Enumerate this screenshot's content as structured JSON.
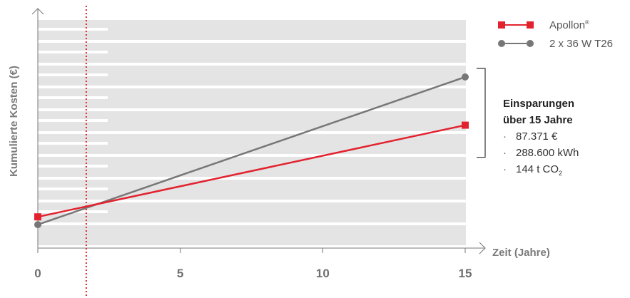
{
  "chart_data": {
    "type": "line",
    "xlabel": "Zeit (Jahre)",
    "ylabel": "Kumulierte Kosten (€)",
    "xlim": [
      0,
      15
    ],
    "x_ticks": [
      "0",
      "5",
      "10",
      "15"
    ],
    "series": [
      {
        "name": "Apollon",
        "name_superscript": "®",
        "color": "#e2232f",
        "marker": "square",
        "x": [
          0,
          15
        ],
        "y": [
          0.1,
          0.69
        ]
      },
      {
        "name": "2 x 36 W T26",
        "color": "#777777",
        "marker": "circle",
        "x": [
          0,
          15
        ],
        "y": [
          0.05,
          1.0
        ]
      }
    ],
    "break_even_x": 1.7,
    "break_even_color": "#e2232f",
    "annotation": {
      "title_line1": "Einsparungen",
      "title_line2": "über 15 Jahre",
      "items": [
        "87.371 €",
        "288.600 kWh",
        "144 t CO"
      ],
      "co2_subscript": "2"
    },
    "background_band_color": "#e4e4e4",
    "grid": false
  }
}
